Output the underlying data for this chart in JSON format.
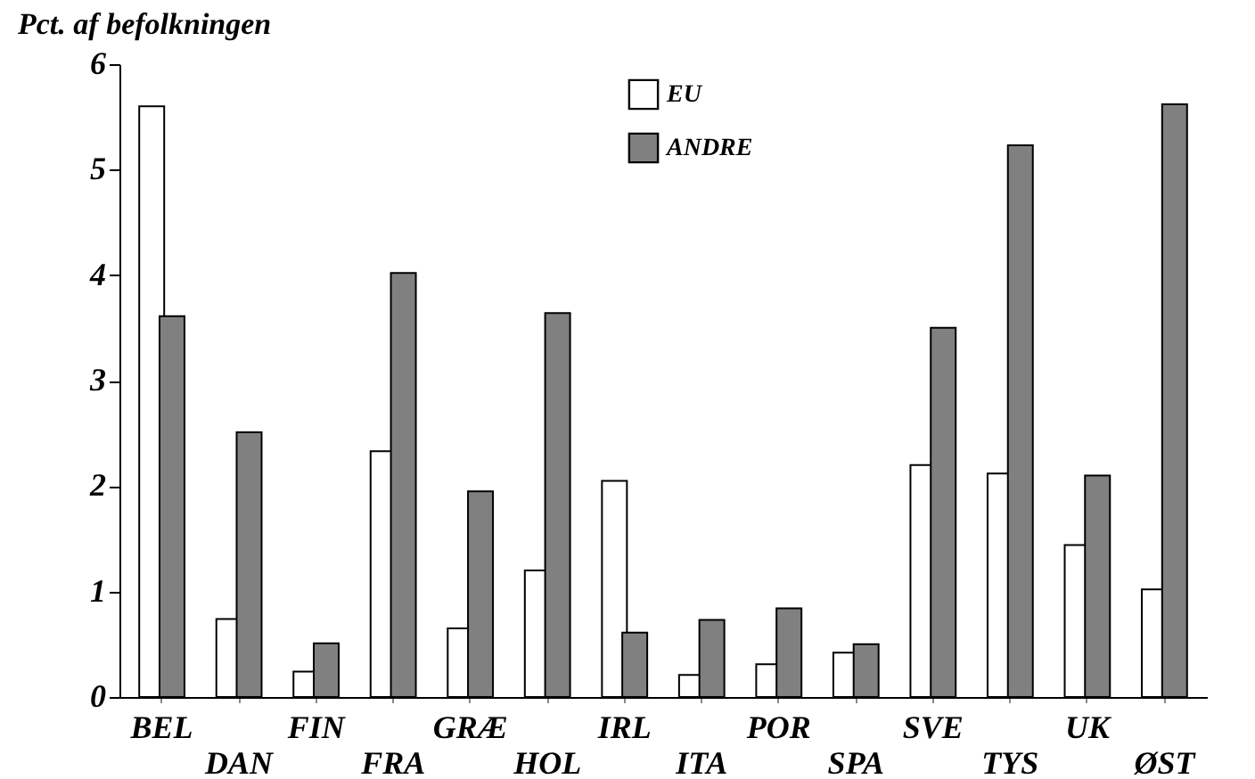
{
  "chart_data": {
    "type": "bar",
    "ylabel": "Pct. af befolkningen",
    "categories": [
      "BEL",
      "DAN",
      "FIN",
      "FRA",
      "GRÆ",
      "HOL",
      "IRL",
      "ITA",
      "POR",
      "SPA",
      "SVE",
      "TYS",
      "UK",
      "ØST"
    ],
    "series": [
      {
        "name": "EU",
        "color": "#ffffff",
        "values": [
          5.6,
          0.74,
          0.24,
          2.33,
          0.65,
          1.2,
          2.05,
          0.21,
          0.31,
          0.42,
          2.2,
          2.12,
          1.44,
          1.02
        ]
      },
      {
        "name": "ANDRE",
        "color": "#808080",
        "values": [
          3.61,
          2.51,
          0.51,
          4.02,
          1.95,
          3.64,
          0.61,
          0.73,
          0.84,
          0.5,
          3.5,
          5.23,
          2.1,
          5.62
        ]
      }
    ],
    "ylim": [
      0,
      6
    ],
    "yticks": [
      0,
      1,
      2,
      3,
      4,
      5,
      6
    ],
    "grid": false,
    "legend": "top"
  }
}
